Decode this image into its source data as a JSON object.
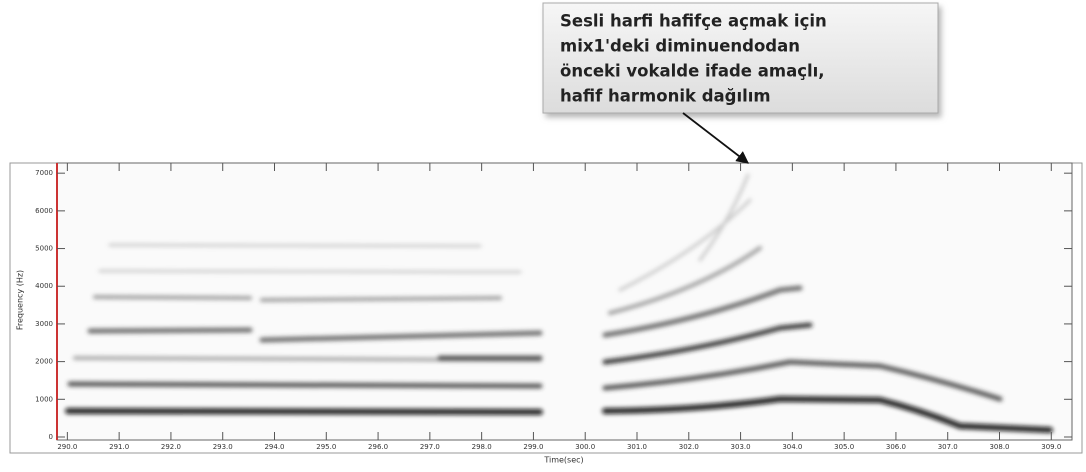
{
  "chart_data": {
    "type": "spectrogram",
    "annotation": [
      "Sesli harfi hafifçe açmak için",
      "mix1'deki diminuendodan",
      "önceki vokalde ifade amaçlı,",
      "hafif harmonik dağılım"
    ],
    "xlabel": "Time(sec)",
    "ylabel": "Frequency (Hz)",
    "xlim": [
      289.8,
      309.4
    ],
    "ylim": [
      -80,
      7270
    ],
    "xticks": [
      {
        "value": 290,
        "label": "290.0"
      },
      {
        "value": 291,
        "label": "291.0"
      },
      {
        "value": 292,
        "label": "292.0"
      },
      {
        "value": 293,
        "label": "293.0"
      },
      {
        "value": 294,
        "label": "294.0"
      },
      {
        "value": 295,
        "label": "295.0"
      },
      {
        "value": 296,
        "label": "296.0"
      },
      {
        "value": 297,
        "label": "297.0"
      },
      {
        "value": 298,
        "label": "298.0"
      },
      {
        "value": 299,
        "label": "299.0"
      },
      {
        "value": 300,
        "label": "300.0"
      },
      {
        "value": 301,
        "label": "301.0"
      },
      {
        "value": 302,
        "label": "302.0"
      },
      {
        "value": 303,
        "label": "303.0"
      },
      {
        "value": 304,
        "label": "304.0"
      },
      {
        "value": 305,
        "label": "305.0"
      },
      {
        "value": 306,
        "label": "306.0"
      },
      {
        "value": 307,
        "label": "307.0"
      },
      {
        "value": 308,
        "label": "308.0"
      },
      {
        "value": 309,
        "label": "309.0"
      }
    ],
    "yticks": [
      0,
      1000,
      2000,
      3000,
      4000,
      5000,
      6000,
      7000
    ]
  }
}
